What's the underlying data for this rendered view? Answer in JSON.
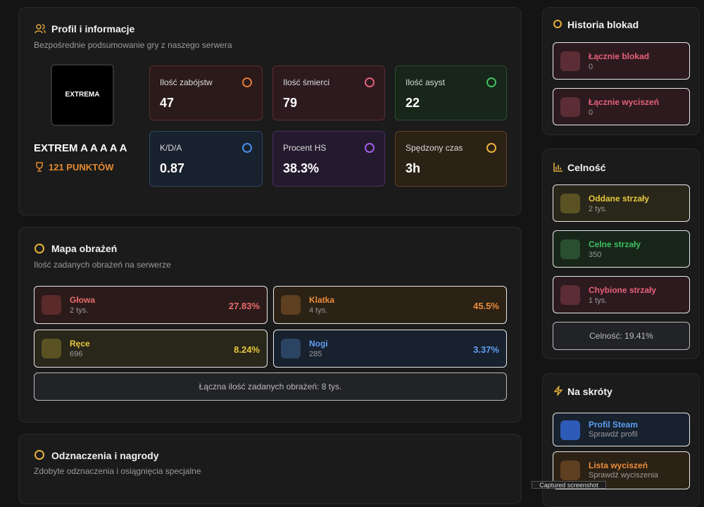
{
  "profile": {
    "title": "Profil i informacje",
    "subtitle": "Bezpośrednie podsumowanie gry z naszego serwera",
    "logo": "EXTREMA",
    "name": "EXTREM A A A A A",
    "points": "121 PUNKTÓW",
    "stats": [
      {
        "label": "Ilość zabójstw",
        "value": "47"
      },
      {
        "label": "Ilość śmierci",
        "value": "79"
      },
      {
        "label": "Ilość asyst",
        "value": "22"
      },
      {
        "label": "K/D/A",
        "value": "0.87"
      },
      {
        "label": "Procent HS",
        "value": "38.3%"
      },
      {
        "label": "Spędzony czas",
        "value": "3h"
      }
    ]
  },
  "damage": {
    "title": "Mapa obrażeń",
    "subtitle": "Ilość zadanych obrażeń na serwerze",
    "parts": [
      {
        "label": "Głowa",
        "amount": "2 tys.",
        "percent": "27.83%"
      },
      {
        "label": "Klatka",
        "amount": "4 tys.",
        "percent": "45.5%"
      },
      {
        "label": "Ręce",
        "amount": "696",
        "percent": "8.24%"
      },
      {
        "label": "Nogi",
        "amount": "285",
        "percent": "3.37%"
      }
    ],
    "total": "Łączna ilość zadanych obrażeń: 8 tys."
  },
  "awards": {
    "title": "Odznaczenia i nagrody",
    "subtitle": "Zdobyte odznaczenia i osiągnięcia specjalne"
  },
  "blocks": {
    "title": "Historia blokad",
    "items": [
      {
        "label": "Łącznie blokad",
        "value": "0"
      },
      {
        "label": "Łącznie wyciszeń",
        "value": "0"
      }
    ]
  },
  "accuracy": {
    "title": "Celność",
    "items": [
      {
        "label": "Oddane strzały",
        "value": "2 tys."
      },
      {
        "label": "Celne strzały",
        "value": "350"
      },
      {
        "label": "Chybione strzały",
        "value": "1 tys."
      }
    ],
    "summary": "Celność: 19.41%"
  },
  "shortcuts": {
    "title": "Na skróty",
    "items": [
      {
        "label": "Profil Steam",
        "sub": "Sprawdź profil"
      },
      {
        "label": "Lista wyciszeń",
        "sub": "Sprawdź wyciszenia"
      }
    ]
  },
  "tooltip": "Captured screenshot"
}
